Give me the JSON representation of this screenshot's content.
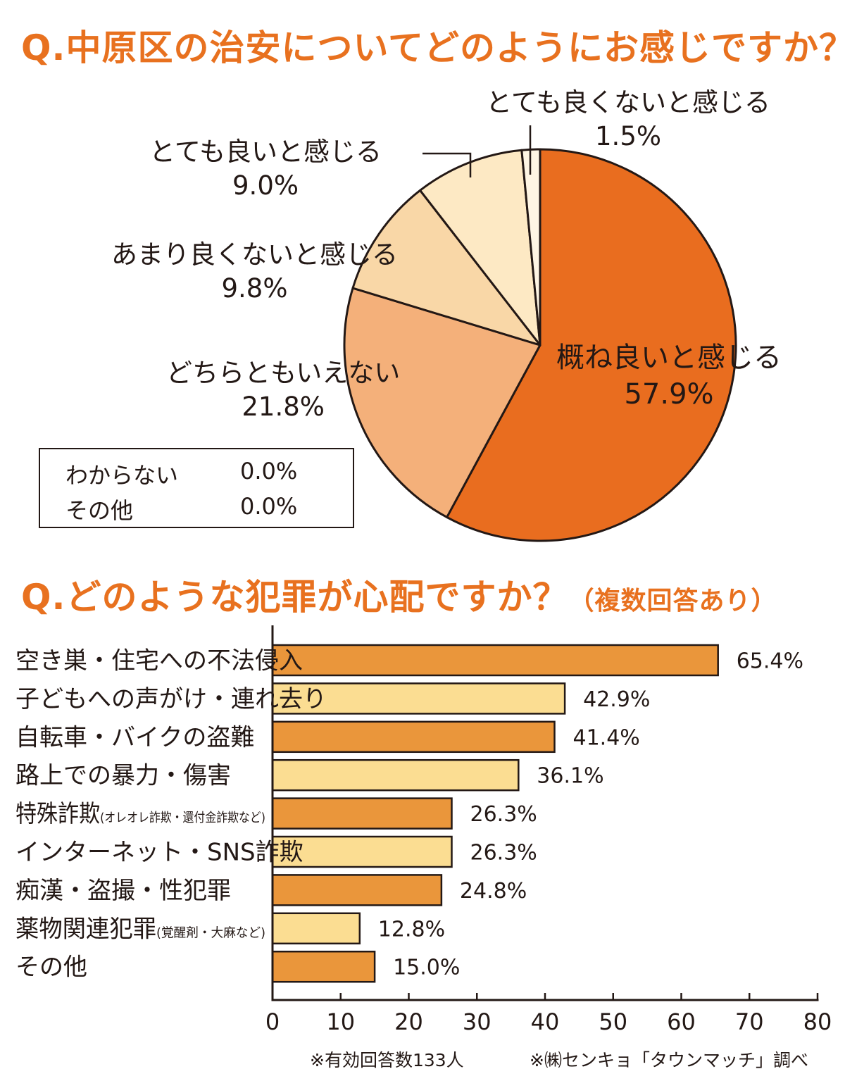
{
  "pie_title": "Q.中原区の治安についてどのようにお感じですか？",
  "bar_title": "Q.どのような犯罪が心配ですか？",
  "bar_title_note": "（複数回答あり）",
  "legend_extra": [
    {
      "label": "わからない",
      "value": "0.0%"
    },
    {
      "label": "その他",
      "value": "0.0%"
    }
  ],
  "footer": {
    "left": "※有効回答数133人",
    "right": "※㈱センキョ「タウンマッチ」調べ"
  },
  "colors": {
    "accent": "#e8711f",
    "pie": [
      "#e96d1f",
      "#f4b07a",
      "#f9d7a7",
      "#fde9c4",
      "#fef5e4"
    ],
    "bar_dark": "#ea963b",
    "bar_light": "#fbdd92"
  },
  "chart_data": [
    {
      "type": "pie",
      "title": "Q.中原区の治安についてどのようにお感じですか？",
      "slices": [
        {
          "label": "概ね良いと感じる",
          "value": 57.9,
          "display": "57.9%"
        },
        {
          "label": "どちらともいえない",
          "value": 21.8,
          "display": "21.8%"
        },
        {
          "label": "あまり良くないと感じる",
          "value": 9.8,
          "display": "9.8%"
        },
        {
          "label": "とても良いと感じる",
          "value": 9.0,
          "display": "9.0%"
        },
        {
          "label": "とても良くないと感じる",
          "value": 1.5,
          "display": "1.5%"
        },
        {
          "label": "わからない",
          "value": 0.0,
          "display": "0.0%"
        },
        {
          "label": "その他",
          "value": 0.0,
          "display": "0.0%"
        }
      ]
    },
    {
      "type": "bar",
      "orientation": "horizontal",
      "title": "Q.どのような犯罪が心配ですか？（複数回答あり）",
      "categories": [
        "空き巣・住宅への不法侵入",
        "子どもへの声がけ・連れ去り",
        "自転車・バイクの盗難",
        "路上での暴力・傷害",
        "特殊詐欺",
        "インターネット・SNS詐欺",
        "痴漢・盗撮・性犯罪",
        "薬物関連犯罪",
        "その他"
      ],
      "category_notes": [
        "",
        "",
        "",
        "",
        "(オレオレ詐欺・還付金詐欺など)",
        "",
        "",
        "(覚醒剤・大麻など)",
        ""
      ],
      "values": [
        65.4,
        42.9,
        41.4,
        36.1,
        26.3,
        26.3,
        24.8,
        12.8,
        15.0
      ],
      "labels": [
        "65.4%",
        "42.9%",
        "41.4%",
        "36.1%",
        "26.3%",
        "26.3%",
        "24.8%",
        "12.8%",
        "15.0%"
      ],
      "xlim": [
        0,
        80
      ],
      "xticks": [
        0,
        10,
        20,
        30,
        40,
        50,
        60,
        70,
        80
      ]
    }
  ]
}
